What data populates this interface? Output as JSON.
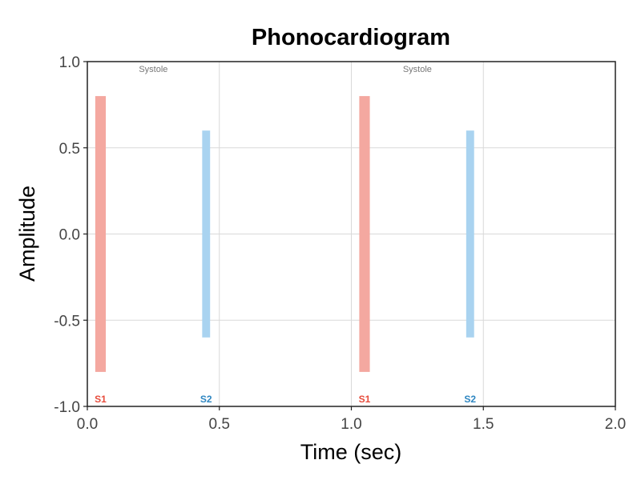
{
  "chart_data": {
    "type": "bar",
    "title": "Phonocardiogram",
    "xlabel": "Time (sec)",
    "ylabel": "Amplitude",
    "xlim": [
      0,
      2
    ],
    "ylim": [
      -1,
      1
    ],
    "x_ticks": [
      "0.0",
      "0.5",
      "1.0",
      "1.5",
      "2.0"
    ],
    "y_ticks": [
      "-1.0",
      "-0.5",
      "0.0",
      "0.5",
      "1.0"
    ],
    "grid": true,
    "series": [
      {
        "name": "S1",
        "color": "#f4a8a0",
        "label_color": "#e74c3c",
        "bars": [
          {
            "x_start": 0.03,
            "x_end": 0.07,
            "y_min": -0.8,
            "y_max": 0.8
          },
          {
            "x_start": 1.03,
            "x_end": 1.07,
            "y_min": -0.8,
            "y_max": 0.8
          }
        ]
      },
      {
        "name": "S2",
        "color": "#a9d3f0",
        "label_color": "#2e86c1",
        "bars": [
          {
            "x_start": 0.435,
            "x_end": 0.465,
            "y_min": -0.6,
            "y_max": 0.6
          },
          {
            "x_start": 1.435,
            "x_end": 1.465,
            "y_min": -0.6,
            "y_max": 0.6
          }
        ]
      }
    ],
    "annotations": [
      {
        "text": "Systole",
        "x": 0.25,
        "y": 0.94
      },
      {
        "text": "Systole",
        "x": 1.25,
        "y": 0.94
      }
    ]
  }
}
